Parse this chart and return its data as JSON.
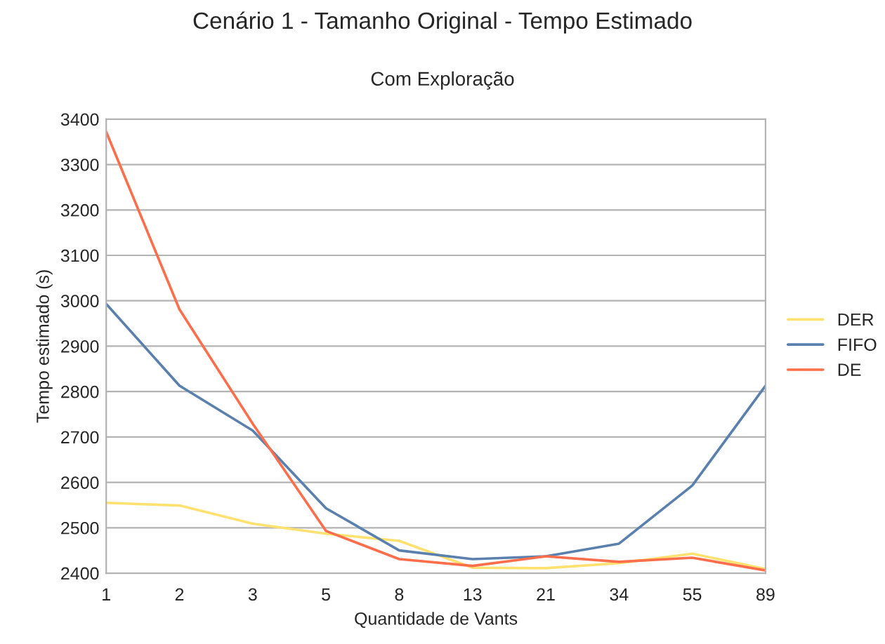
{
  "chart_data": {
    "type": "line",
    "title": "Cenário 1 - Tamanho Original - Tempo Estimado",
    "subtitle": "Com Exploração",
    "xlabel": "Quantidade de Vants",
    "ylabel": "Tempo estimado (s)",
    "categories": [
      "1",
      "2",
      "3",
      "5",
      "8",
      "13",
      "21",
      "34",
      "55",
      "89"
    ],
    "series": [
      {
        "name": "DER",
        "color": "#ffe170",
        "values": [
          2555,
          2549,
          2509,
          2487,
          2471,
          2412,
          2411,
          2422,
          2443,
          2409
        ]
      },
      {
        "name": "FIFO",
        "color": "#5a80ad",
        "values": [
          2993,
          2813,
          2714,
          2543,
          2450,
          2431,
          2437,
          2465,
          2593,
          2813
        ]
      },
      {
        "name": "DE",
        "color": "#ff6e4a",
        "values": [
          3372,
          2981,
          2729,
          2493,
          2431,
          2416,
          2437,
          2425,
          2434,
          2406
        ]
      }
    ],
    "ylim": [
      2400,
      3400
    ],
    "yticks": [
      2400,
      2500,
      2600,
      2700,
      2800,
      2900,
      3000,
      3100,
      3200,
      3300,
      3400
    ],
    "grid": "y",
    "legend": "right",
    "marker": "none",
    "line_style": "solid"
  }
}
